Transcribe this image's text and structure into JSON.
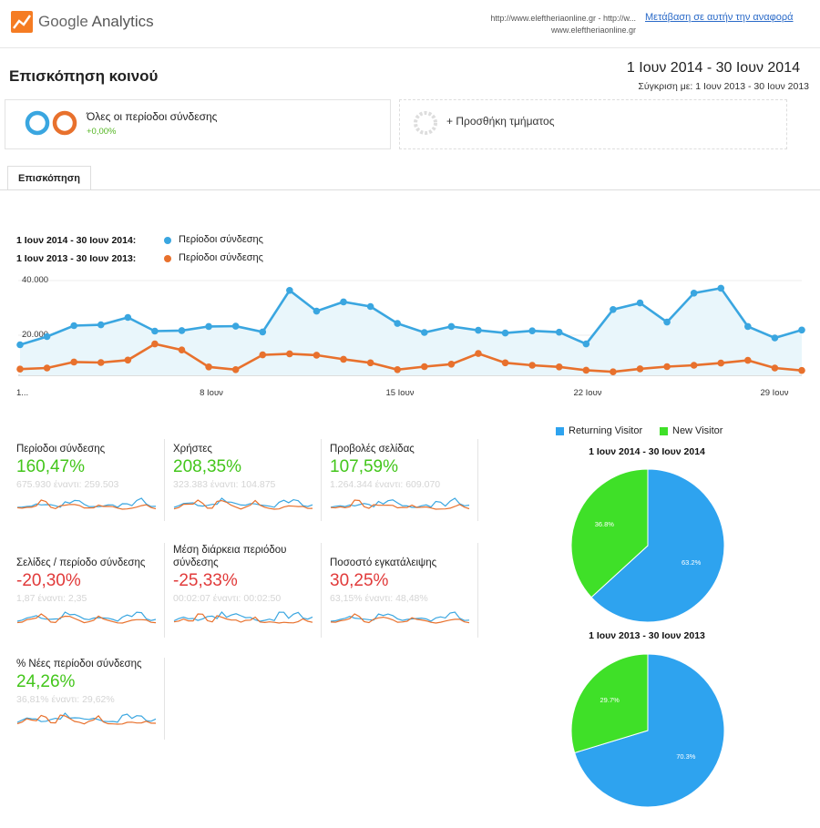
{
  "app": {
    "brand_google": "Google",
    "brand_analytics": "Analytics",
    "url_line1": "http://www.eleftheriaonline.gr - http://w...",
    "url_line2": "www.eleftheriaonline.gr",
    "go_link": "Μετάβαση σε αυτήν την αναφορά"
  },
  "header": {
    "title": "Επισκόπηση κοινού",
    "date_range": "1 Ιουν 2014 - 30 Ιουν 2014",
    "compare": "Σύγκριση με: 1 Ιουν 2013 - 30 Ιουν 2013"
  },
  "segments": {
    "seg1_label": "Όλες οι περίοδοι σύνδεσης",
    "seg1_change": "+0,00%",
    "seg2_label": "+ Προσθήκη τμήματος"
  },
  "tabs": {
    "overview": "Επισκόπηση"
  },
  "legend": {
    "range1": "1 Ιουν 2014 - 30 Ιουν 2014:",
    "range2": "1 Ιουν 2013 - 30 Ιουν 2013:",
    "series1": "Περίοδοι σύνδεσης",
    "series2": "Περίοδοι σύνδεσης"
  },
  "colors": {
    "blue": "#3aa6e0",
    "orange": "#e8712d",
    "area": "#e9f6fb",
    "green": "#43c61b",
    "red": "#e13a3a",
    "pie_returning": "#2ea3ef",
    "pie_new": "#3fe028"
  },
  "chart_data": {
    "type": "line",
    "y_tick_labels": [
      "40.000",
      "20.000"
    ],
    "x_tick_labels": [
      "1...",
      "8 Ιουν",
      "15 Ιουν",
      "22 Ιουν",
      "29 Ιουν"
    ],
    "ylim": [
      0,
      40000
    ],
    "x": [
      1,
      2,
      3,
      4,
      5,
      6,
      7,
      8,
      9,
      10,
      11,
      12,
      13,
      14,
      15,
      16,
      17,
      18,
      19,
      20,
      21,
      22,
      23,
      24,
      25,
      26,
      27,
      28,
      29,
      30
    ],
    "series": [
      {
        "name": "Περίοδοι σύνδεσης",
        "values": [
          16500,
          19500,
          23500,
          23800,
          26500,
          21500,
          21700,
          23200,
          23300,
          21200,
          36400,
          28800,
          32200,
          30500,
          24300,
          21000,
          23200,
          21800,
          20800,
          21600,
          21100,
          16800,
          29400,
          31800,
          24800,
          35400,
          37200,
          23200,
          19000,
          21900
        ]
      },
      {
        "name": "Περίοδοι σύνδεσης",
        "values": [
          7600,
          8000,
          10200,
          10000,
          10900,
          16800,
          14600,
          8400,
          7400,
          12800,
          13200,
          12700,
          11200,
          9900,
          7400,
          8500,
          9400,
          13300,
          9900,
          9000,
          8400,
          7200,
          6600,
          7700,
          8500,
          9000,
          9800,
          10800,
          8000,
          7100
        ]
      }
    ]
  },
  "metrics": [
    {
      "label": "Περίοδοι σύνδεσης",
      "value": "160,47%",
      "sub": "675.930 έναντι: 259.503",
      "positive": true
    },
    {
      "label": "Χρήστες",
      "value": "208,35%",
      "sub": "323.383 έναντι: 104.875",
      "positive": true
    },
    {
      "label": "Προβολές σελίδας",
      "value": "107,59%",
      "sub": "1.264.344 έναντι: 609.070",
      "positive": true
    },
    {
      "label": "Σελίδες / περίοδο σύνδεσης",
      "value": "-20,30%",
      "sub": "1,87 έναντι: 2,35",
      "positive": false
    },
    {
      "label": "Μέση διάρκεια περιόδου σύνδεσης",
      "value": "-25,33%",
      "sub": "00:02:07 έναντι: 00:02:50",
      "positive": false
    },
    {
      "label": "Ποσοστό εγκατάλειψης",
      "value": "30,25%",
      "sub": "63,15% έναντι: 48,48%",
      "positive": false
    },
    {
      "label": "% Νέες περίοδοι σύνδεσης",
      "value": "24,26%",
      "sub": "36,81% έναντι: 29,62%",
      "positive": true
    }
  ],
  "pies": {
    "legend_returning": "Returning Visitor",
    "legend_new": "New Visitor",
    "charts": [
      {
        "title": "1 Ιουν 2014 - 30 Ιουν 2014",
        "returning": 63.2,
        "new": 36.8,
        "returning_label": "63.2%",
        "new_label": "36.8%"
      },
      {
        "title": "1 Ιουν 2013 - 30 Ιουν 2013",
        "returning": 70.3,
        "new": 29.7,
        "returning_label": "70.3%",
        "new_label": "29.7%"
      }
    ]
  }
}
